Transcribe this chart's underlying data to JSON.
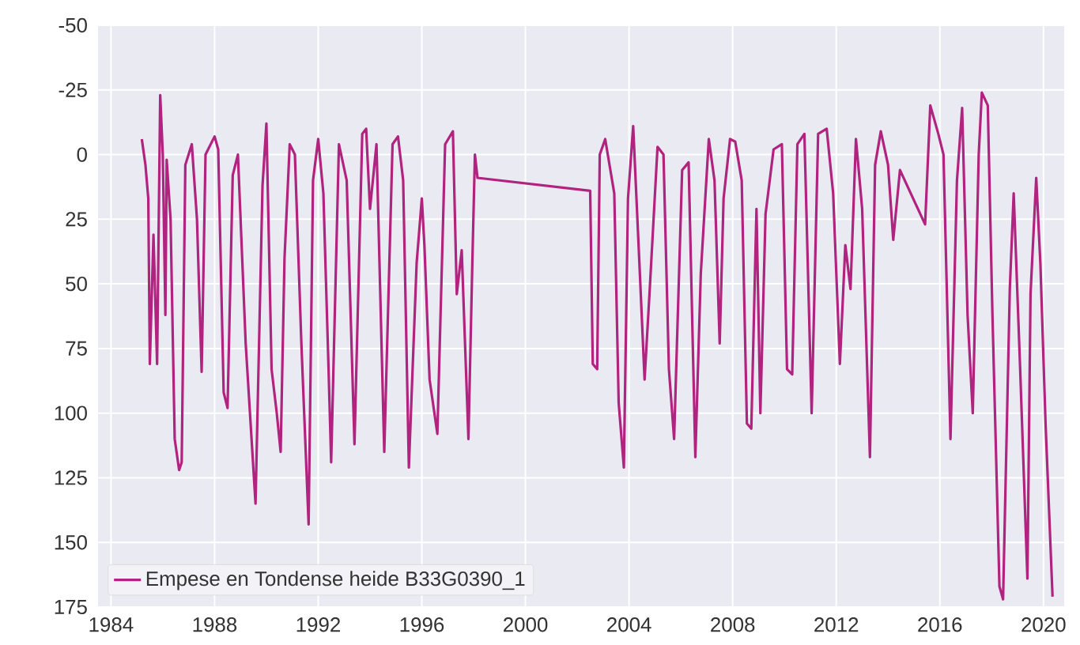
{
  "chart_data": {
    "type": "line",
    "x": [
      1985.19,
      1985.33,
      1985.44,
      1985.5,
      1985.64,
      1985.78,
      1985.9,
      1986.0,
      1986.1,
      1986.15,
      1986.3,
      1986.46,
      1986.63,
      1986.73,
      1986.87,
      1987.12,
      1987.32,
      1987.5,
      1987.65,
      1988.0,
      1988.14,
      1988.35,
      1988.5,
      1988.7,
      1988.9,
      1989.2,
      1989.58,
      1989.85,
      1990.0,
      1990.2,
      1990.4,
      1990.55,
      1990.7,
      1990.9,
      1991.1,
      1991.35,
      1991.63,
      1991.8,
      1992.0,
      1992.2,
      1992.4,
      1992.5,
      1992.8,
      1993.1,
      1993.4,
      1993.7,
      1993.85,
      1994.0,
      1994.25,
      1994.55,
      1994.87,
      1995.08,
      1995.28,
      1995.5,
      1995.8,
      1996.0,
      1996.1,
      1996.3,
      1996.6,
      1996.9,
      1997.2,
      1997.35,
      1997.54,
      1997.8,
      1997.95,
      1998.05,
      1998.15,
      2002.5,
      2002.6,
      2002.77,
      2002.87,
      2003.08,
      2003.28,
      2003.43,
      2003.6,
      2003.8,
      2003.96,
      2004.16,
      2004.4,
      2004.6,
      2004.8,
      2005.1,
      2005.33,
      2005.54,
      2005.74,
      2006.05,
      2006.3,
      2006.56,
      2006.77,
      2007.08,
      2007.3,
      2007.5,
      2007.65,
      2007.9,
      2008.1,
      2008.35,
      2008.55,
      2008.72,
      2008.92,
      2009.07,
      2009.27,
      2009.58,
      2009.9,
      2010.1,
      2010.3,
      2010.5,
      2010.77,
      2011.05,
      2011.3,
      2011.63,
      2011.88,
      2012.14,
      2012.35,
      2012.55,
      2012.76,
      2013.0,
      2013.3,
      2013.5,
      2013.72,
      2014.0,
      2014.2,
      2014.46,
      2015.43,
      2015.63,
      2015.94,
      2016.14,
      2016.41,
      2016.66,
      2016.86,
      2017.07,
      2017.27,
      2017.5,
      2017.62,
      2017.85,
      2018.03,
      2018.3,
      2018.44,
      2018.7,
      2018.85,
      2019.1,
      2019.38,
      2019.5,
      2019.72,
      2019.88,
      2020.08,
      2020.35
    ],
    "series": [
      {
        "name": "Empese en Tondense heide B33G0390_1",
        "color": "#b0237e",
        "values": [
          -6,
          4,
          17,
          81,
          31,
          81,
          -23,
          0,
          62,
          2,
          25,
          110,
          122,
          119,
          4,
          -4,
          25,
          84,
          0,
          -7,
          -2,
          92,
          98,
          8,
          0,
          73,
          135,
          12,
          -12,
          83,
          100,
          115,
          40,
          -4,
          0,
          73,
          143,
          10,
          -6,
          15,
          83,
          119,
          -4,
          10,
          112,
          -8,
          -10,
          21,
          -4,
          115,
          -4,
          -7,
          10,
          121,
          42,
          17,
          35,
          87,
          108,
          -4,
          -9,
          54,
          37,
          110,
          42,
          0,
          9,
          14,
          81,
          83,
          0,
          -6,
          6,
          15,
          96,
          121,
          17,
          -11,
          42,
          87,
          52,
          -3,
          0,
          83,
          110,
          6,
          3,
          117,
          46,
          -6,
          10,
          73,
          17,
          -6,
          -5,
          10,
          104,
          106,
          21,
          100,
          23,
          -2,
          -4,
          83,
          85,
          -4,
          -8,
          100,
          -8,
          -10,
          15,
          81,
          35,
          52,
          -6,
          21,
          117,
          4,
          -9,
          4,
          33,
          6,
          27,
          -19,
          -8,
          0,
          110,
          10,
          -18,
          62,
          100,
          0,
          -24,
          -19,
          62,
          167,
          172,
          52,
          15,
          83,
          164,
          54,
          9,
          42,
          104,
          171
        ]
      }
    ],
    "xlim": [
      1983.5,
      2020.8
    ],
    "ylim": [
      175,
      -50
    ],
    "xticks": [
      1984,
      1988,
      1992,
      1996,
      2000,
      2004,
      2008,
      2012,
      2016,
      2020
    ],
    "yticks": [
      -50,
      -25,
      0,
      25,
      50,
      75,
      100,
      125,
      150,
      175
    ],
    "grid": true,
    "legend": "bottom left"
  }
}
